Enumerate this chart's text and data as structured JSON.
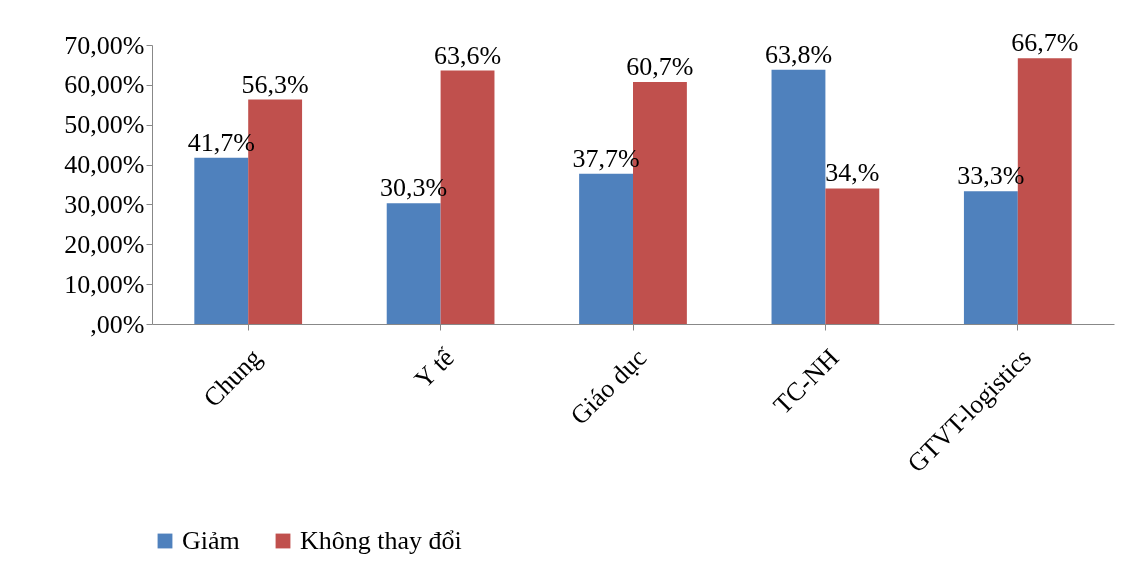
{
  "chart_data": {
    "type": "bar",
    "categories": [
      "Chung",
      "Y tế",
      "Giáo dục",
      "TC-NH",
      "GTVT-logistics"
    ],
    "series": [
      {
        "name": "Giảm",
        "color": "#4f81bd",
        "values": [
          41.7,
          30.3,
          37.7,
          63.8,
          33.3
        ],
        "value_labels": [
          "41,7%",
          "30,3%",
          "37,7%",
          "63,8%",
          "33,3%"
        ]
      },
      {
        "name": "Không thay đổi",
        "color": "#c0504d",
        "values": [
          56.3,
          63.6,
          60.7,
          34.0,
          66.7
        ],
        "value_labels": [
          "56,3%",
          "63,6%",
          "60,7%",
          "34,%",
          "66,7%"
        ]
      }
    ],
    "ylim": [
      0,
      70
    ],
    "yticks": [
      {
        "value": 0,
        "label": ",00%"
      },
      {
        "value": 10,
        "label": "10,00%"
      },
      {
        "value": 20,
        "label": "20,00%"
      },
      {
        "value": 30,
        "label": "30,00%"
      },
      {
        "value": 40,
        "label": "40,00%"
      },
      {
        "value": 50,
        "label": "50,00%"
      },
      {
        "value": 60,
        "label": "60,00%"
      },
      {
        "value": 70,
        "label": "70,00%"
      }
    ],
    "grid": false,
    "legend": "bottom"
  }
}
